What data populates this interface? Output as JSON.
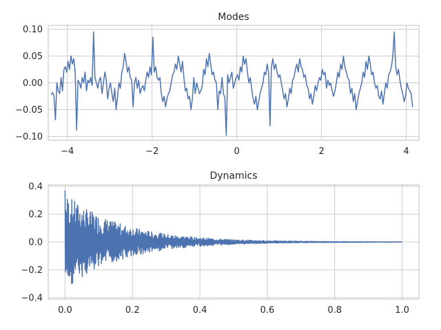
{
  "colors": {
    "series": "#4c72b0",
    "grid": "#cccccc",
    "text": "#262626"
  },
  "chart_data": [
    {
      "type": "line",
      "title": "Modes",
      "xlabel": "",
      "ylabel": "",
      "xlim": [
        -4.45,
        4.3
      ],
      "ylim": [
        -0.107,
        0.107
      ],
      "x_range": [
        -4.38,
        4.15
      ],
      "grid": true,
      "legend": "none",
      "xticks": [
        -4,
        -2,
        0,
        2,
        4
      ],
      "xtick_labels": [
        "−4",
        "−2",
        "0",
        "2",
        "4"
      ],
      "yticks": [
        -0.1,
        -0.05,
        0.0,
        0.05,
        0.1
      ],
      "ytick_labels": [
        "−0.10",
        "−0.05",
        "0.00",
        "0.05",
        "0.10"
      ],
      "series": [
        {
          "values": [
            -0.022,
            -0.018,
            -0.025,
            -0.069,
            0.0,
            -0.015,
            -0.02,
            0.01,
            -0.015,
            0.025,
            0.03,
            0.02,
            0.04,
            0.025,
            0.05,
            0.035,
            0.045,
            0.02,
            -0.088,
            0.005,
            0.0,
            -0.01,
            0.01,
            0.0,
            0.02,
            -0.015,
            0.005,
            0.0,
            0.01,
            -0.005,
            0.095,
            0.01,
            0.0,
            -0.01,
            0.005,
            0.01,
            -0.02,
            0.0,
            0.02,
            0.005,
            -0.03,
            -0.01,
            0.0,
            -0.02,
            -0.035,
            -0.01,
            -0.05,
            -0.025,
            0.0,
            -0.01,
            0.02,
            0.03,
            0.055,
            0.04,
            0.02,
            0.03,
            0.01,
            0.005,
            -0.045,
            0.0,
            0.01,
            -0.01,
            0.005,
            -0.02,
            -0.01,
            -0.005,
            -0.015,
            0.005,
            0.02,
            0.01,
            0.03,
            0.015,
            0.085,
            0.02,
            0.03,
            0.01,
            0.005,
            0.01,
            -0.02,
            -0.035,
            -0.025,
            -0.045,
            -0.03,
            -0.02,
            -0.015,
            0.0,
            0.015,
            0.02,
            0.035,
            0.025,
            0.05,
            0.035,
            0.02,
            0.04,
            0.01,
            -0.015,
            -0.01,
            -0.03,
            -0.025,
            -0.05,
            -0.03,
            0.01,
            -0.02,
            0.0,
            -0.01,
            -0.02,
            -0.015,
            -0.005,
            0.025,
            0.015,
            0.045,
            0.03,
            0.055,
            0.035,
            0.015,
            0.02,
            0.005,
            0.0,
            -0.05,
            -0.015,
            -0.02,
            0.01,
            -0.02,
            -0.028,
            -0.098,
            0.015,
            0.0,
            0.01,
            0.02,
            -0.01,
            0.0,
            0.01,
            0.015,
            0.005,
            0.03,
            0.02,
            0.05,
            0.035,
            0.045,
            0.02,
            0.0,
            0.01,
            -0.01,
            -0.03,
            -0.04,
            -0.025,
            -0.05,
            -0.035,
            -0.02,
            -0.01,
            0.0,
            0.02,
            0.015,
            0.035,
            0.02,
            -0.08,
            0.03,
            0.045,
            0.025,
            0.035,
            0.02,
            0.01,
            0.015,
            0.0,
            -0.015,
            -0.03,
            -0.02,
            -0.045,
            -0.03,
            -0.01,
            -0.02,
            0.005,
            0.01,
            0.025,
            0.035,
            0.02,
            0.045,
            0.03,
            0.025,
            0.01,
            0.015,
            -0.005,
            -0.01,
            -0.03,
            -0.02,
            -0.04,
            -0.025,
            -0.005,
            -0.015,
            0.0,
            0.01,
            0.005,
            0.025,
            0.015,
            0.02,
            -0.01,
            0.005,
            -0.005,
            0.0,
            -0.015,
            -0.025,
            -0.015,
            0.0,
            0.02,
            0.01,
            0.035,
            0.025,
            0.05,
            0.03,
            0.02,
            0.01,
            0.005,
            -0.02,
            -0.01,
            -0.035,
            -0.02,
            -0.05,
            -0.035,
            -0.02,
            -0.01,
            0.0,
            0.02,
            0.01,
            0.04,
            0.025,
            0.05,
            0.035,
            0.015,
            0.02,
            0.0,
            -0.01,
            -0.005,
            -0.025,
            -0.03,
            -0.015,
            -0.04,
            -0.02,
            0.0,
            -0.01,
            0.015,
            0.02,
            0.03,
            0.05,
            0.095,
            0.03,
            0.015,
            0.025,
            0.005,
            -0.01,
            -0.02,
            -0.035,
            -0.025,
            0.0,
            -0.01,
            -0.015,
            -0.02,
            -0.045
          ]
        }
      ]
    },
    {
      "type": "line",
      "title": "Dynamics",
      "xlabel": "",
      "ylabel": "",
      "xlim": [
        -0.05,
        1.05
      ],
      "ylim": [
        -0.41,
        0.41
      ],
      "grid": true,
      "legend": "none",
      "xticks": [
        0.0,
        0.2,
        0.4,
        0.6,
        0.8,
        1.0
      ],
      "xtick_labels": [
        "0.0",
        "0.2",
        "0.4",
        "0.6",
        "0.8",
        "1.0"
      ],
      "yticks": [
        -0.4,
        -0.2,
        0.0,
        0.2,
        0.4
      ],
      "ytick_labels": [
        "−0.4",
        "−0.2",
        "0.0",
        "0.2",
        "0.4"
      ],
      "series": [
        {
          "x_range": [
            0.0,
            1.0
          ],
          "n_points": 1200,
          "start": 0.37,
          "envelope_peak": 0.35,
          "decay_rate": 6.0
        }
      ]
    }
  ]
}
